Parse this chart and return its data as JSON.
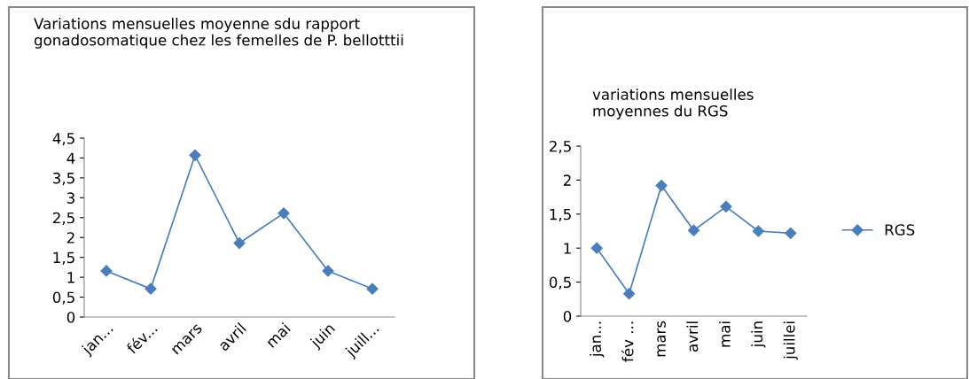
{
  "chart_data": [
    {
      "type": "line",
      "title": "Variations mensuelles moyenne sdu rapport gonadosomatique chez les femelles de P. bellotttii",
      "categories": [
        "jan...",
        "fév...",
        "mars",
        "avril",
        "mai",
        "juin",
        "juill..."
      ],
      "series": [
        {
          "color": "#4a7ebb",
          "values": [
            1.16,
            0.71,
            4.07,
            1.86,
            2.61,
            1.16,
            0.71
          ]
        }
      ],
      "ylim": [
        0,
        4.5
      ],
      "yticks": [
        0,
        {
          "value": 0.5,
          "label": "0,5"
        },
        1,
        {
          "value": 1.5,
          "label": "1,5"
        },
        2,
        {
          "value": 2.5,
          "label": "2,5"
        },
        3,
        {
          "value": 3.5,
          "label": "3,5"
        },
        4,
        {
          "value": 4.5,
          "label": "4,5"
        }
      ],
      "marker": "diamond",
      "grid": false,
      "legend": false
    },
    {
      "type": "line",
      "title": "variations mensuelles moyennes du RGS",
      "categories": [
        "jan...",
        "fév ...",
        "mars",
        "avril",
        "mai",
        "juin",
        "juillei"
      ],
      "series": [
        {
          "name": "RGS",
          "color": "#4a7ebb",
          "values": [
            1.0,
            0.33,
            1.92,
            1.26,
            1.61,
            1.25,
            1.22
          ]
        }
      ],
      "ylim": [
        0,
        2.5
      ],
      "yticks": [
        0,
        {
          "value": 0.5,
          "label": "0,5"
        },
        1,
        {
          "value": 1.5,
          "label": "1,5"
        },
        2,
        {
          "value": 2.5,
          "label": "2,5"
        }
      ],
      "marker": "diamond",
      "grid": false,
      "legend": "right"
    }
  ]
}
